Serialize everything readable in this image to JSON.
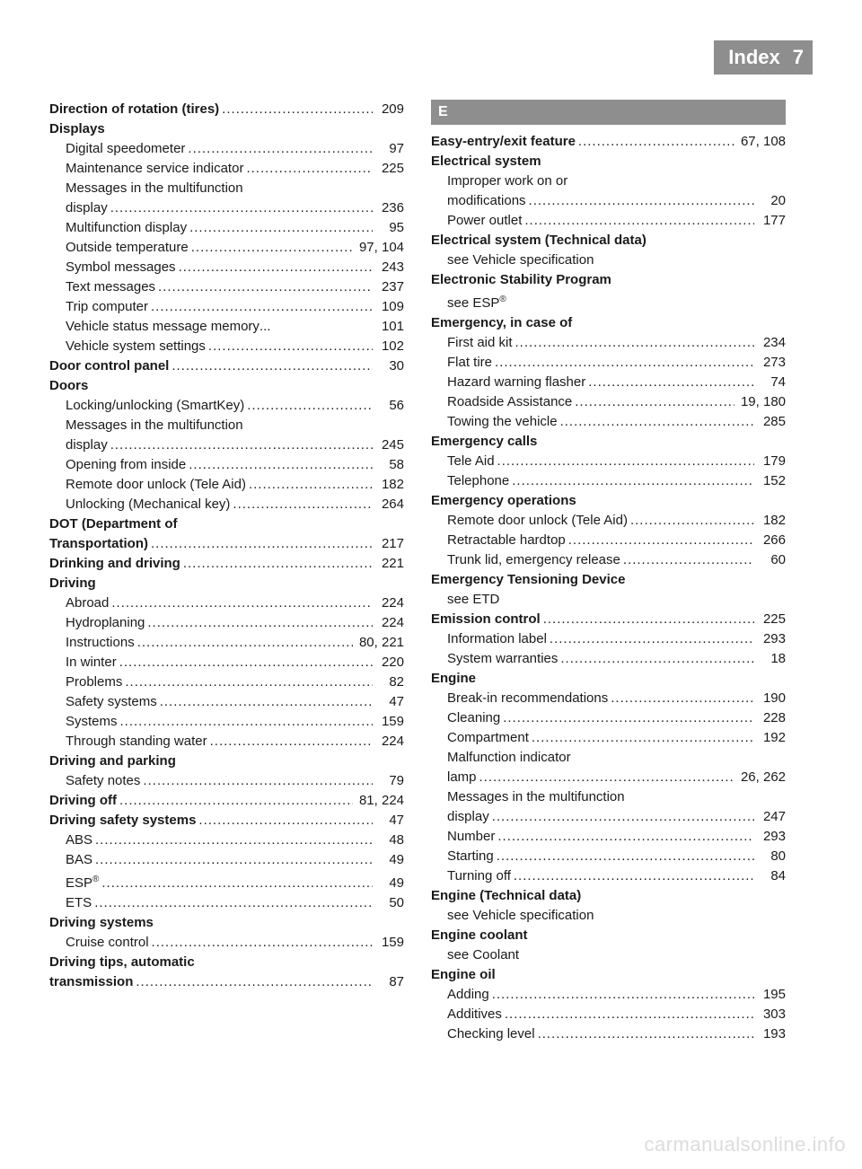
{
  "header": {
    "title": "Index",
    "page": "7"
  },
  "section_letter": "E",
  "watermark": "carmanualsonline.info",
  "left": [
    {
      "bold": true,
      "sub": false,
      "label": "Direction of rotation (tires)",
      "pages": "209"
    },
    {
      "bold": true,
      "sub": false,
      "label": "Displays",
      "pages": ""
    },
    {
      "bold": false,
      "sub": true,
      "label": "Digital speedometer",
      "pages": "97"
    },
    {
      "bold": false,
      "sub": true,
      "label": "Maintenance service indicator",
      "pages": "225"
    },
    {
      "bold": false,
      "sub": true,
      "label": "Messages in the multifunction",
      "pages": "",
      "nowrap": true
    },
    {
      "bold": false,
      "sub": true,
      "label": "display",
      "pages": "236"
    },
    {
      "bold": false,
      "sub": true,
      "label": "Multifunction display",
      "pages": "95"
    },
    {
      "bold": false,
      "sub": true,
      "label": "Outside temperature",
      "pages": "97, 104"
    },
    {
      "bold": false,
      "sub": true,
      "label": "Symbol messages",
      "pages": "243"
    },
    {
      "bold": false,
      "sub": true,
      "label": "Text messages",
      "pages": "237"
    },
    {
      "bold": false,
      "sub": true,
      "label": "Trip computer",
      "pages": "109"
    },
    {
      "bold": false,
      "sub": true,
      "label": "Vehicle status message memory",
      "pages": "101",
      "ellipsis": true
    },
    {
      "bold": false,
      "sub": true,
      "label": "Vehicle system settings",
      "pages": "102"
    },
    {
      "bold": true,
      "sub": false,
      "label": "Door control panel",
      "pages": "30"
    },
    {
      "bold": true,
      "sub": false,
      "label": "Doors",
      "pages": ""
    },
    {
      "bold": false,
      "sub": true,
      "label": "Locking/unlocking (SmartKey)",
      "pages": "56"
    },
    {
      "bold": false,
      "sub": true,
      "label": "Messages in the multifunction",
      "pages": "",
      "nowrap": true
    },
    {
      "bold": false,
      "sub": true,
      "label": "display",
      "pages": "245"
    },
    {
      "bold": false,
      "sub": true,
      "label": "Opening from inside",
      "pages": "58"
    },
    {
      "bold": false,
      "sub": true,
      "label": "Remote door unlock (Tele Aid)",
      "pages": "182"
    },
    {
      "bold": false,
      "sub": true,
      "label": "Unlocking (Mechanical key)",
      "pages": "264"
    },
    {
      "bold": true,
      "sub": false,
      "label": "DOT (Department of",
      "pages": "",
      "nowrap": true
    },
    {
      "bold": true,
      "sub": false,
      "label": "Transportation)",
      "pages": "217"
    },
    {
      "bold": true,
      "sub": false,
      "label": "Drinking and driving",
      "pages": "221"
    },
    {
      "bold": true,
      "sub": false,
      "label": "Driving",
      "pages": ""
    },
    {
      "bold": false,
      "sub": true,
      "label": "Abroad",
      "pages": "224"
    },
    {
      "bold": false,
      "sub": true,
      "label": "Hydroplaning",
      "pages": "224"
    },
    {
      "bold": false,
      "sub": true,
      "label": "Instructions",
      "pages": "80, 221"
    },
    {
      "bold": false,
      "sub": true,
      "label": "In winter",
      "pages": "220"
    },
    {
      "bold": false,
      "sub": true,
      "label": "Problems",
      "pages": "82"
    },
    {
      "bold": false,
      "sub": true,
      "label": "Safety systems",
      "pages": "47"
    },
    {
      "bold": false,
      "sub": true,
      "label": "Systems",
      "pages": "159"
    },
    {
      "bold": false,
      "sub": true,
      "label": "Through standing water",
      "pages": "224"
    },
    {
      "bold": true,
      "sub": false,
      "label": "Driving and parking",
      "pages": ""
    },
    {
      "bold": false,
      "sub": true,
      "label": "Safety notes",
      "pages": "79"
    },
    {
      "bold": true,
      "sub": false,
      "label": "Driving off",
      "pages": "81, 224"
    },
    {
      "bold": true,
      "sub": false,
      "label": "Driving safety systems",
      "pages": "47"
    },
    {
      "bold": false,
      "sub": true,
      "label": "ABS",
      "pages": "48"
    },
    {
      "bold": false,
      "sub": true,
      "label": "BAS",
      "pages": "49"
    },
    {
      "bold": false,
      "sub": true,
      "label": "ESP®",
      "pages": "49",
      "sup": true
    },
    {
      "bold": false,
      "sub": true,
      "label": "ETS",
      "pages": "50"
    },
    {
      "bold": true,
      "sub": false,
      "label": "Driving systems",
      "pages": ""
    },
    {
      "bold": false,
      "sub": true,
      "label": "Cruise control",
      "pages": "159"
    },
    {
      "bold": true,
      "sub": false,
      "label": "Driving tips, automatic",
      "pages": "",
      "nowrap": true
    },
    {
      "bold": true,
      "sub": false,
      "label": "transmission",
      "pages": "87"
    }
  ],
  "right": [
    {
      "bold": true,
      "sub": false,
      "label": "Easy-entry/exit feature",
      "pages": "67, 108"
    },
    {
      "bold": true,
      "sub": false,
      "label": "Electrical system",
      "pages": ""
    },
    {
      "bold": false,
      "sub": true,
      "label": "Improper work on or",
      "pages": "",
      "nowrap": true
    },
    {
      "bold": false,
      "sub": true,
      "label": "modifications",
      "pages": "20"
    },
    {
      "bold": false,
      "sub": true,
      "label": "Power outlet",
      "pages": "177"
    },
    {
      "bold": true,
      "sub": false,
      "label": "Electrical system (Technical data)",
      "pages": ""
    },
    {
      "bold": false,
      "sub": true,
      "label": "see Vehicle specification",
      "pages": "",
      "nowrap": true
    },
    {
      "bold": true,
      "sub": false,
      "label": "Electronic Stability Program",
      "pages": ""
    },
    {
      "bold": false,
      "sub": true,
      "label": "see ESP®",
      "pages": "",
      "sup": true,
      "nowrap": true
    },
    {
      "bold": true,
      "sub": false,
      "label": "Emergency, in case of",
      "pages": ""
    },
    {
      "bold": false,
      "sub": true,
      "label": "First aid kit",
      "pages": "234"
    },
    {
      "bold": false,
      "sub": true,
      "label": "Flat tire",
      "pages": "273"
    },
    {
      "bold": false,
      "sub": true,
      "label": "Hazard warning flasher",
      "pages": "74"
    },
    {
      "bold": false,
      "sub": true,
      "label": "Roadside Assistance",
      "pages": "19, 180"
    },
    {
      "bold": false,
      "sub": true,
      "label": "Towing the vehicle",
      "pages": "285"
    },
    {
      "bold": true,
      "sub": false,
      "label": "Emergency calls",
      "pages": ""
    },
    {
      "bold": false,
      "sub": true,
      "label": "Tele Aid",
      "pages": "179"
    },
    {
      "bold": false,
      "sub": true,
      "label": "Telephone",
      "pages": "152"
    },
    {
      "bold": true,
      "sub": false,
      "label": "Emergency operations",
      "pages": ""
    },
    {
      "bold": false,
      "sub": true,
      "label": "Remote door unlock (Tele Aid)",
      "pages": "182"
    },
    {
      "bold": false,
      "sub": true,
      "label": "Retractable hardtop",
      "pages": "266"
    },
    {
      "bold": false,
      "sub": true,
      "label": "Trunk lid, emergency release",
      "pages": "60"
    },
    {
      "bold": true,
      "sub": false,
      "label": "Emergency Tensioning Device",
      "pages": ""
    },
    {
      "bold": false,
      "sub": true,
      "label": "see ETD",
      "pages": "",
      "nowrap": true
    },
    {
      "bold": true,
      "sub": false,
      "label": "Emission control",
      "pages": "225"
    },
    {
      "bold": false,
      "sub": true,
      "label": "Information label",
      "pages": "293"
    },
    {
      "bold": false,
      "sub": true,
      "label": "System warranties",
      "pages": "18"
    },
    {
      "bold": true,
      "sub": false,
      "label": "Engine",
      "pages": ""
    },
    {
      "bold": false,
      "sub": true,
      "label": "Break-in recommendations",
      "pages": "190"
    },
    {
      "bold": false,
      "sub": true,
      "label": "Cleaning",
      "pages": "228"
    },
    {
      "bold": false,
      "sub": true,
      "label": "Compartment",
      "pages": "192"
    },
    {
      "bold": false,
      "sub": true,
      "label": "Malfunction indicator",
      "pages": "",
      "nowrap": true
    },
    {
      "bold": false,
      "sub": true,
      "label": "lamp",
      "pages": "26, 262"
    },
    {
      "bold": false,
      "sub": true,
      "label": "Messages in the multifunction",
      "pages": "",
      "nowrap": true
    },
    {
      "bold": false,
      "sub": true,
      "label": "display",
      "pages": "247"
    },
    {
      "bold": false,
      "sub": true,
      "label": "Number",
      "pages": "293"
    },
    {
      "bold": false,
      "sub": true,
      "label": "Starting",
      "pages": "80"
    },
    {
      "bold": false,
      "sub": true,
      "label": "Turning off",
      "pages": "84"
    },
    {
      "bold": true,
      "sub": false,
      "label": "Engine (Technical data)",
      "pages": ""
    },
    {
      "bold": false,
      "sub": true,
      "label": "see Vehicle specification",
      "pages": "",
      "nowrap": true
    },
    {
      "bold": true,
      "sub": false,
      "label": "Engine coolant",
      "pages": ""
    },
    {
      "bold": false,
      "sub": true,
      "label": "see Coolant",
      "pages": "",
      "nowrap": true
    },
    {
      "bold": true,
      "sub": false,
      "label": "Engine oil",
      "pages": ""
    },
    {
      "bold": false,
      "sub": true,
      "label": "Adding",
      "pages": "195"
    },
    {
      "bold": false,
      "sub": true,
      "label": "Additives",
      "pages": "303"
    },
    {
      "bold": false,
      "sub": true,
      "label": "Checking level",
      "pages": "193"
    }
  ]
}
